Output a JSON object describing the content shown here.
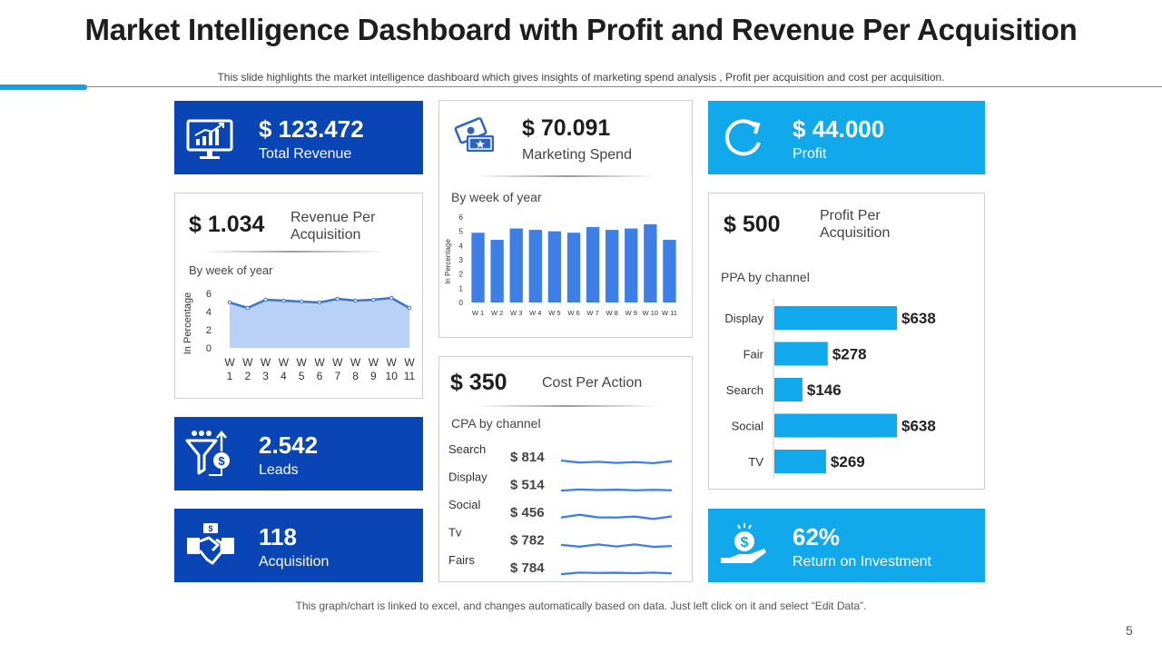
{
  "header": {
    "title": "Market Intelligence Dashboard with Profit and Revenue Per Acquisition",
    "subtitle": "This slide highlights the market intelligence dashboard which gives insights of marketing spend analysis , Profit per acquisition and cost per acquisition."
  },
  "kpis": {
    "total_revenue": {
      "value": "$ 123.472",
      "label": "Total Revenue",
      "icon": "monitor-chart-icon"
    },
    "marketing_spend": {
      "value": "$ 70.091",
      "label": "Marketing Spend",
      "icon": "tickets-icon"
    },
    "profit": {
      "value": "$ 44.000",
      "label": "Profit",
      "icon": "refresh-icon"
    },
    "leads": {
      "value": "2.542",
      "label": "Leads",
      "icon": "funnel-dollar-icon"
    },
    "acquisition": {
      "value": "118",
      "label": "Acquisition",
      "icon": "handshake-icon"
    },
    "roi": {
      "value": "62%",
      "label": "Return on Investment",
      "icon": "hand-coin-icon"
    }
  },
  "revenue_per_acquisition": {
    "value": "$ 1.034",
    "label_line1": "Revenue Per",
    "label_line2": "Acquisition",
    "subtitle": "By week of year"
  },
  "profit_per_acquisition": {
    "value": "$ 500",
    "label_line1": "Profit Per",
    "label_line2": "Acquisition",
    "subtitle": "PPA by channel"
  },
  "cost_per_action": {
    "value": "$ 350",
    "label": "Cost Per Action",
    "subtitle": "CPA by channel"
  },
  "marketing_spend_chart": {
    "subtitle": "By week of year"
  },
  "colors": {
    "dark_blue": "#0a45b5",
    "light_blue": "#12a9ec",
    "bar_blue": "#3d7fe6",
    "area_fill": "#b9d1f7",
    "area_line": "#3b74cf"
  },
  "chart_data": [
    {
      "id": "revenue_per_acquisition_area",
      "type": "area",
      "title": "By week of year",
      "ylabel": "In Percentage",
      "xlabel": "",
      "categories": [
        [
          "W",
          "1"
        ],
        [
          "W",
          "2"
        ],
        [
          "W",
          "3"
        ],
        [
          "W",
          "4"
        ],
        [
          "W",
          "5"
        ],
        [
          "W",
          "6"
        ],
        [
          "W",
          "7"
        ],
        [
          "W",
          "8"
        ],
        [
          "W",
          "9"
        ],
        [
          "W",
          "10"
        ],
        [
          "W",
          "11"
        ]
      ],
      "yticks": [
        "0",
        "2",
        "4",
        "6"
      ],
      "ylim": [
        0,
        6
      ],
      "values": [
        5.0,
        4.4,
        5.3,
        5.2,
        5.1,
        5.0,
        5.4,
        5.2,
        5.3,
        5.5,
        4.4
      ]
    },
    {
      "id": "marketing_spend_bar",
      "type": "bar",
      "title": "By week of year",
      "ylabel": "In Percentage",
      "xlabel": "",
      "categories": [
        "W 1",
        "W 2",
        "W 3",
        "W 4",
        "W 5",
        "W 6",
        "W 7",
        "W 8",
        "W 9",
        "W 10",
        "W 11"
      ],
      "yticks": [
        "0",
        "1",
        "2",
        "3",
        "4",
        "5",
        "6"
      ],
      "ylim": [
        0,
        6
      ],
      "values": [
        4.9,
        4.4,
        5.2,
        5.1,
        5.0,
        4.9,
        5.3,
        5.1,
        5.2,
        5.5,
        4.4
      ]
    },
    {
      "id": "ppa_by_channel",
      "type": "bar",
      "orientation": "horizontal",
      "title": "PPA by channel",
      "categories": [
        "Display",
        "Fair",
        "Search",
        "Social",
        "TV"
      ],
      "values": [
        638,
        278,
        146,
        638,
        269
      ],
      "value_labels": [
        "$638",
        "$278",
        "$146",
        "$638",
        "$269"
      ],
      "xlim": [
        0,
        638
      ]
    },
    {
      "id": "cpa_by_channel",
      "type": "line",
      "title": "CPA by channel",
      "rows": [
        {
          "channel": "Search",
          "value_label": "$ 814",
          "trend": [
            4.2,
            3.2,
            3.6,
            3.0,
            3.4,
            2.9,
            3.9
          ]
        },
        {
          "channel": "Display",
          "value_label": "$ 514",
          "trend": [
            3.0,
            3.6,
            3.3,
            3.5,
            3.2,
            3.4,
            3.2
          ]
        },
        {
          "channel": "Social",
          "value_label": "$ 456",
          "trend": [
            3.4,
            4.8,
            3.5,
            3.4,
            3.9,
            2.7,
            4.0
          ]
        },
        {
          "channel": "Tv",
          "value_label": "$ 782",
          "trend": [
            3.6,
            2.7,
            3.8,
            2.8,
            3.8,
            2.6,
            3.0
          ]
        },
        {
          "channel": "Fairs",
          "value_label": "$ 784",
          "trend": [
            2.8,
            3.6,
            3.4,
            3.5,
            3.3,
            3.6,
            3.2
          ]
        }
      ]
    }
  ],
  "footer": {
    "note": "This graph/chart is linked to excel, and changes automatically based on data. Just left click on it and select “Edit Data”.",
    "page_number": "5"
  }
}
